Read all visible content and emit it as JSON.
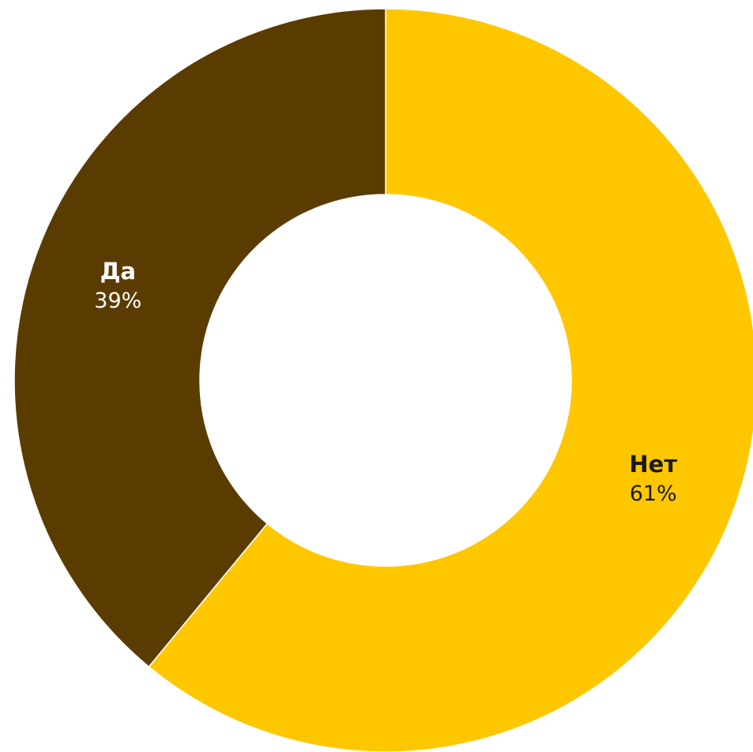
{
  "chart_data": {
    "type": "pie",
    "donut": true,
    "start": "top",
    "direction": "clockwise",
    "slices": [
      {
        "name": "Нет",
        "value": 61,
        "value_label": "61%",
        "color": "#FFC700",
        "label_color": "#1a1a1a"
      },
      {
        "name": "Да",
        "value": 39,
        "value_label": "39%",
        "color": "#5B3C00",
        "label_color": "#ffffff"
      }
    ]
  }
}
